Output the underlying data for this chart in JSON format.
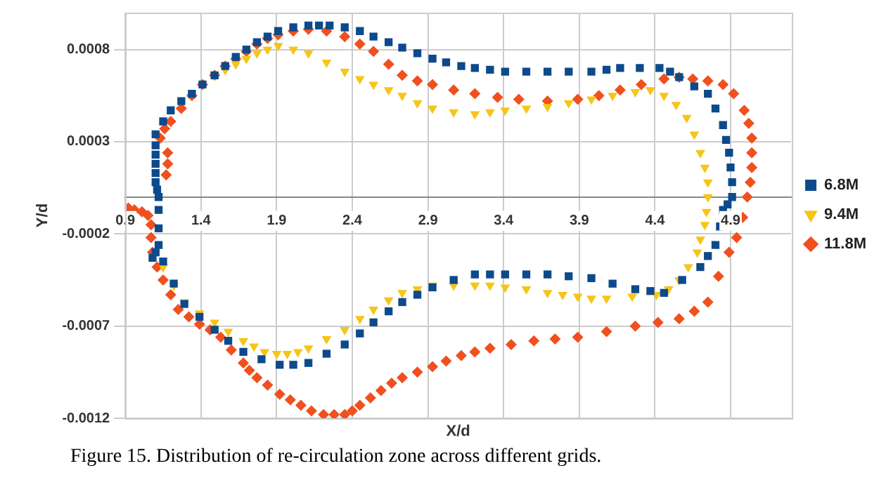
{
  "chart_data": {
    "type": "scatter",
    "xlabel": "X/d",
    "ylabel": "Y/d",
    "annotations": [
      "Figure 15. Distribution of re-circulation zone across different grids."
    ],
    "xlim": [
      0.9,
      5.3
    ],
    "ylim": [
      -0.0012,
      0.001
    ],
    "xticks": [
      0.9,
      1.4,
      1.9,
      2.4,
      2.9,
      3.4,
      3.9,
      4.4,
      4.9
    ],
    "yticks": [
      -0.0012,
      -0.0007,
      -0.0002,
      0.0003,
      0.0008
    ],
    "grid": true,
    "legend": "right",
    "series": [
      {
        "name": "6.8M",
        "color": "#0d4a8c",
        "marker": "square",
        "x": [
          1.12,
          1.11,
          1.1,
          1.1,
          1.1,
          1.1,
          1.1,
          1.1,
          1.15,
          1.2,
          1.27,
          1.34,
          1.41,
          1.49,
          1.56,
          1.63,
          1.7,
          1.77,
          1.84,
          1.91,
          2.01,
          2.11,
          2.18,
          2.25,
          2.35,
          2.45,
          2.54,
          2.64,
          2.73,
          2.83,
          2.93,
          3.02,
          3.12,
          3.21,
          3.31,
          3.41,
          3.55,
          3.69,
          3.83,
          3.98,
          4.08,
          4.17,
          4.3,
          4.43,
          4.5,
          4.56,
          4.66,
          4.75,
          4.8,
          4.85,
          4.87,
          4.89,
          4.9,
          4.91,
          4.91,
          4.88,
          4.85,
          4.83,
          4.8,
          4.75,
          4.7,
          4.58,
          4.46,
          4.37,
          4.27,
          4.12,
          3.98,
          3.83,
          3.69,
          3.55,
          3.41,
          3.31,
          3.21,
          3.07,
          2.93,
          2.83,
          2.73,
          2.64,
          2.54,
          2.45,
          2.35,
          2.23,
          2.11,
          2.01,
          1.92,
          1.8,
          1.68,
          1.58,
          1.49,
          1.39,
          1.29,
          1.22,
          1.15,
          1.08,
          1.1,
          1.12,
          1.12,
          1.12
        ],
        "values": [
          0,
          4e-05,
          8e-05,
          0.00013,
          0.00018,
          0.00023,
          0.00028,
          0.00034,
          0.00041,
          0.00047,
          0.00052,
          0.00056,
          0.00061,
          0.00066,
          0.00071,
          0.00076,
          0.0008,
          0.00084,
          0.00087,
          0.0009,
          0.00092,
          0.00093,
          0.00093,
          0.00093,
          0.00092,
          0.0009,
          0.00087,
          0.00084,
          0.00081,
          0.00078,
          0.00075,
          0.00073,
          0.00071,
          0.0007,
          0.00069,
          0.00068,
          0.00068,
          0.00068,
          0.00068,
          0.00068,
          0.00069,
          0.0007,
          0.0007,
          0.0007,
          0.00068,
          0.00065,
          0.0006,
          0.00056,
          0.00048,
          0.00039,
          0.00031,
          0.00024,
          0.00016,
          8e-05,
          0,
          -4e-05,
          -7e-05,
          -0.00016,
          -0.00026,
          -0.00032,
          -0.00038,
          -0.00045,
          -0.00052,
          -0.00051,
          -0.0005,
          -0.00047,
          -0.00044,
          -0.00043,
          -0.00042,
          -0.00042,
          -0.00042,
          -0.00042,
          -0.00042,
          -0.00045,
          -0.00049,
          -0.00053,
          -0.00057,
          -0.00062,
          -0.00068,
          -0.00074,
          -0.0008,
          -0.00085,
          -0.0009,
          -0.00091,
          -0.00091,
          -0.00088,
          -0.00084,
          -0.00078,
          -0.00072,
          -0.00065,
          -0.00058,
          -0.00047,
          -0.00035,
          -0.00033,
          -0.0003,
          -0.00026,
          -0.00017,
          -7e-05
        ]
      },
      {
        "name": "9.4M",
        "color": "#f5c518",
        "marker": "triangle",
        "x": [
          1.49,
          1.56,
          1.63,
          1.7,
          1.77,
          1.84,
          1.91,
          2.01,
          2.11,
          2.23,
          2.35,
          2.45,
          2.54,
          2.64,
          2.73,
          2.83,
          2.93,
          3.07,
          3.21,
          3.31,
          3.41,
          3.55,
          3.69,
          3.83,
          3.98,
          4.12,
          4.27,
          4.37,
          4.46,
          4.54,
          4.61,
          4.66,
          4.7,
          4.73,
          4.75,
          4.75,
          4.74,
          4.73,
          4.7,
          4.68,
          4.62,
          4.56,
          4.49,
          4.41,
          4.25,
          4.08,
          3.98,
          3.89,
          3.79,
          3.69,
          3.55,
          3.41,
          3.31,
          3.21,
          3.07,
          2.93,
          2.83,
          2.73,
          2.64,
          2.54,
          2.45,
          2.35,
          2.23,
          2.11,
          2.04,
          1.97,
          1.9,
          1.82,
          1.75,
          1.68,
          1.58,
          1.49,
          1.39,
          1.29,
          1.22,
          1.15
        ],
        "values": [
          0.00066,
          0.00069,
          0.00072,
          0.00075,
          0.00078,
          0.0008,
          0.00082,
          0.0008,
          0.00078,
          0.00073,
          0.00068,
          0.00064,
          0.00061,
          0.00058,
          0.00055,
          0.00051,
          0.00048,
          0.00046,
          0.00045,
          0.00046,
          0.00047,
          0.00048,
          0.00049,
          0.00051,
          0.00053,
          0.00055,
          0.00057,
          0.00058,
          0.00055,
          0.0005,
          0.00043,
          0.00034,
          0.00024,
          0.00016,
          8e-05,
          0,
          -8e-05,
          -0.00015,
          -0.00023,
          -0.0003,
          -0.00038,
          -0.00045,
          -0.0005,
          -0.00053,
          -0.00054,
          -0.00055,
          -0.00055,
          -0.00054,
          -0.00053,
          -0.00052,
          -0.0005,
          -0.00049,
          -0.00048,
          -0.00048,
          -0.00048,
          -0.00048,
          -0.0005,
          -0.00052,
          -0.00056,
          -0.00061,
          -0.00066,
          -0.00072,
          -0.00077,
          -0.00082,
          -0.00084,
          -0.00085,
          -0.00085,
          -0.00084,
          -0.00081,
          -0.00078,
          -0.00073,
          -0.00068,
          -0.00063,
          -0.00057,
          -0.00048,
          -0.00038
        ]
      },
      {
        "name": "11.8M",
        "color": "#f0501e",
        "marker": "diamond",
        "x": [
          1.17,
          1.18,
          1.18,
          1.13,
          1.16,
          1.2,
          1.27,
          1.34,
          1.41,
          1.49,
          1.56,
          1.63,
          1.7,
          1.77,
          1.84,
          1.91,
          2.01,
          2.11,
          2.23,
          2.35,
          2.45,
          2.54,
          2.64,
          2.73,
          2.83,
          2.93,
          3.07,
          3.21,
          3.36,
          3.5,
          3.69,
          3.89,
          4.03,
          4.17,
          4.31,
          4.46,
          4.56,
          4.65,
          4.75,
          4.85,
          4.92,
          4.99,
          5.02,
          5.04,
          5.04,
          5.04,
          5.03,
          5.01,
          4.98,
          4.94,
          4.89,
          4.82,
          4.75,
          4.66,
          4.56,
          4.42,
          4.27,
          4.08,
          3.89,
          3.74,
          3.6,
          3.45,
          3.31,
          3.21,
          3.12,
          3.02,
          2.93,
          2.83,
          2.73,
          2.66,
          2.59,
          2.52,
          2.45,
          2.4,
          2.35,
          2.28,
          2.21,
          2.13,
          2.06,
          1.99,
          1.92,
          1.84,
          1.77,
          1.72,
          1.68,
          1.6,
          1.53,
          1.46,
          1.39,
          1.32,
          1.25,
          1.2,
          1.15,
          1.11,
          1.08,
          1.07,
          1.07,
          1.05,
          1.01,
          0.96,
          0.92
        ],
        "values": [
          0.00012,
          0.00018,
          0.00024,
          0.00032,
          0.00037,
          0.00041,
          0.00048,
          0.00055,
          0.00061,
          0.00066,
          0.00071,
          0.00075,
          0.00079,
          0.00083,
          0.00086,
          0.00088,
          0.0009,
          0.00091,
          0.0009,
          0.00087,
          0.00083,
          0.00079,
          0.00072,
          0.00066,
          0.00063,
          0.00061,
          0.00058,
          0.00056,
          0.00054,
          0.00053,
          0.00052,
          0.00053,
          0.00055,
          0.00058,
          0.00061,
          0.00064,
          0.00065,
          0.00064,
          0.00063,
          0.00061,
          0.00056,
          0.00047,
          0.0004,
          0.00032,
          0.00024,
          0.00016,
          8e-05,
          0,
          -0.00011,
          -0.00022,
          -0.0003,
          -0.00043,
          -0.00057,
          -0.00062,
          -0.00066,
          -0.00068,
          -0.0007,
          -0.00073,
          -0.00076,
          -0.00077,
          -0.00078,
          -0.0008,
          -0.00082,
          -0.00084,
          -0.00086,
          -0.00089,
          -0.00092,
          -0.00095,
          -0.00098,
          -0.00101,
          -0.00105,
          -0.00109,
          -0.00113,
          -0.00116,
          -0.00118,
          -0.00118,
          -0.00118,
          -0.00116,
          -0.00113,
          -0.0011,
          -0.00107,
          -0.00102,
          -0.00098,
          -0.00094,
          -0.0009,
          -0.00083,
          -0.00076,
          -0.00072,
          -0.00069,
          -0.00065,
          -0.00061,
          -0.00053,
          -0.00045,
          -0.00038,
          -0.0003,
          -0.00022,
          -0.00015,
          -0.0001,
          -8e-05,
          -7e-05,
          -6e-05
        ]
      }
    ]
  }
}
